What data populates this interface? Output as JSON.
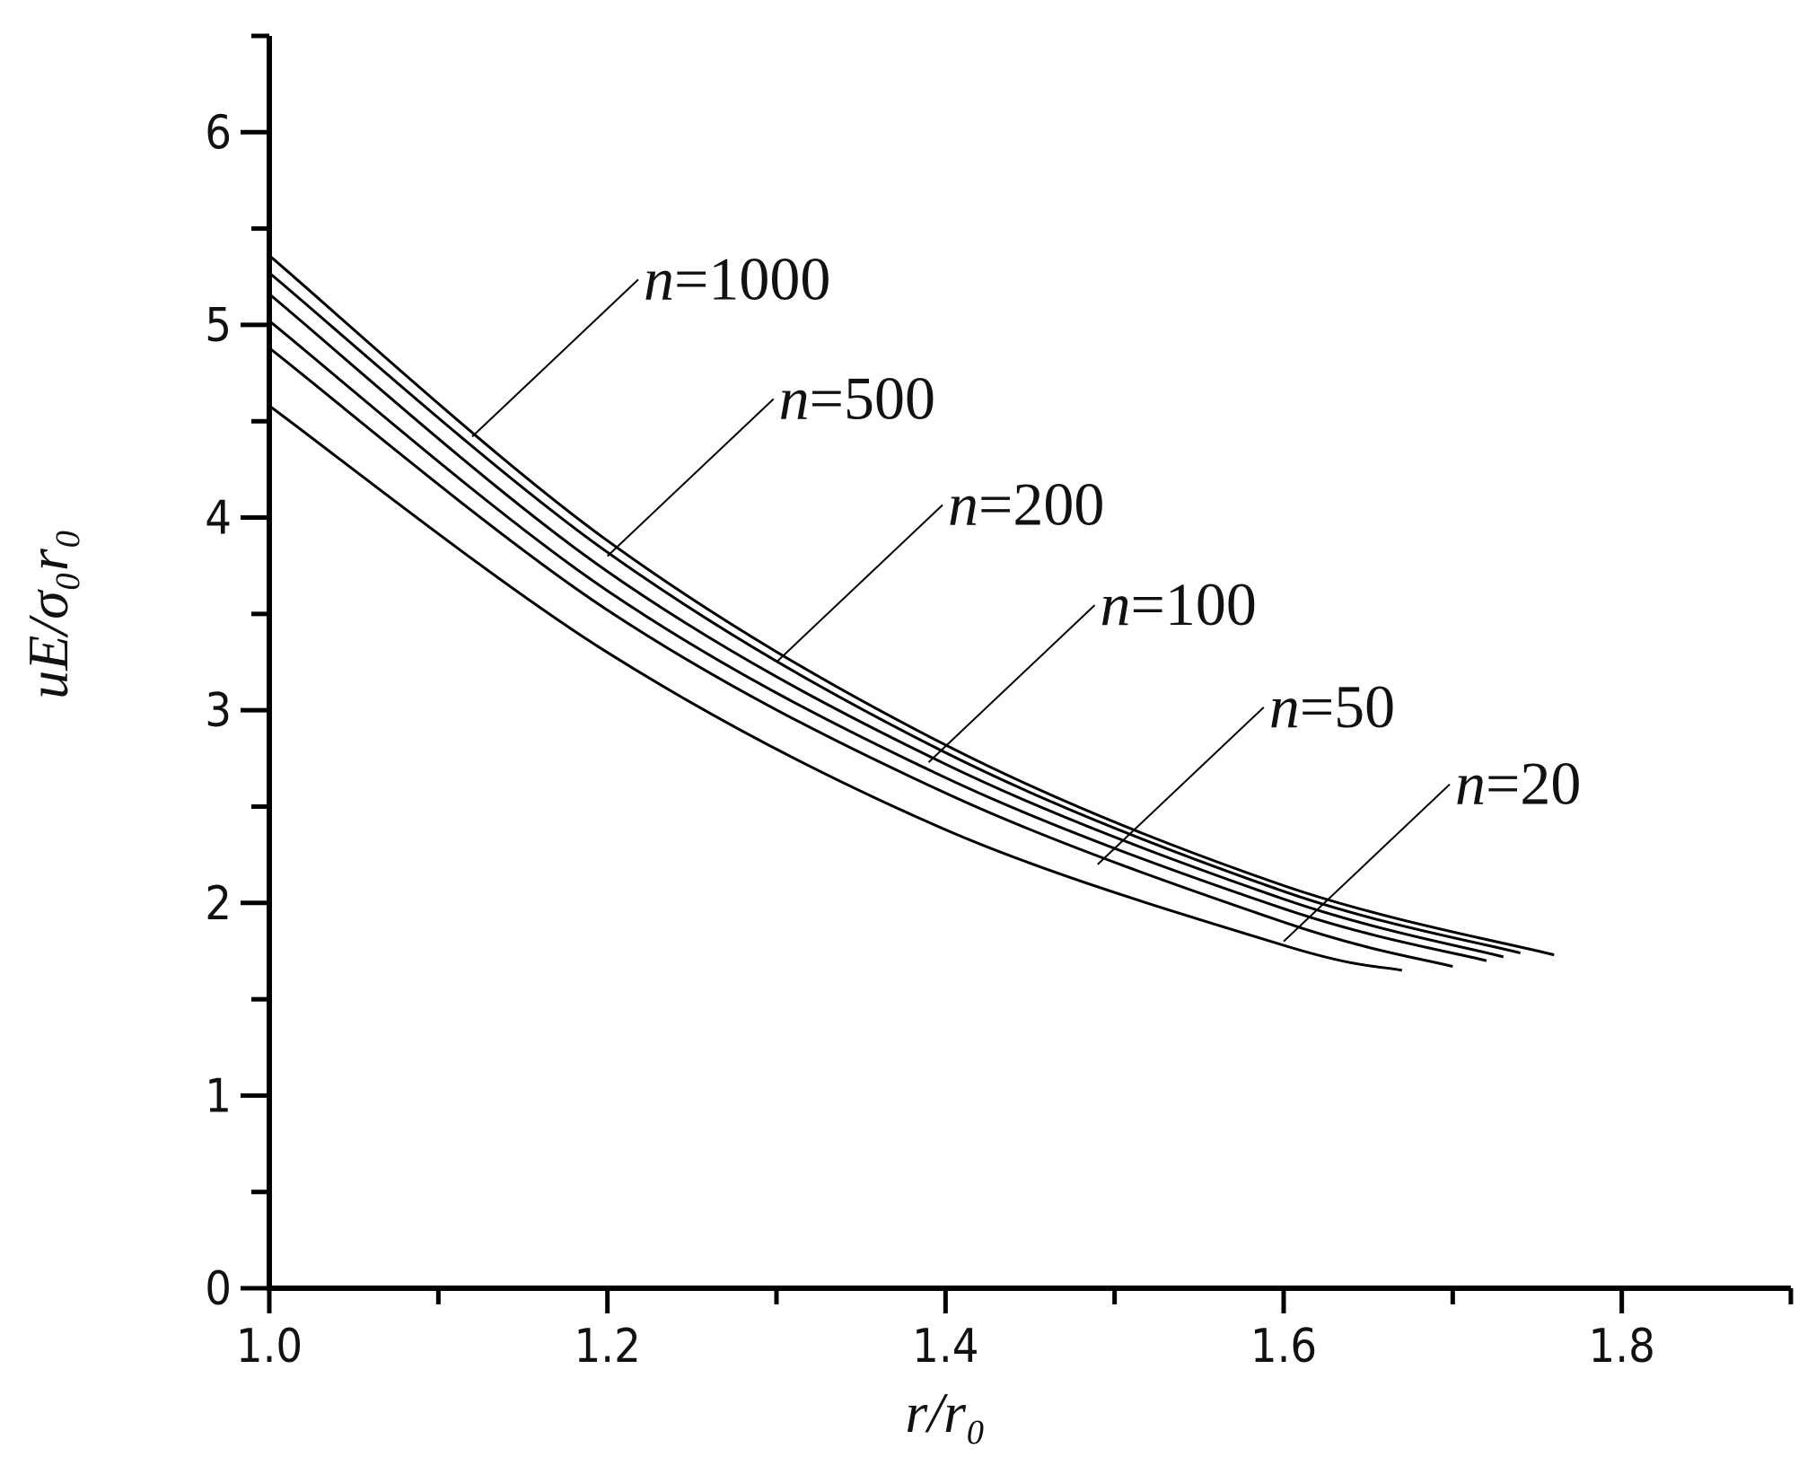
{
  "chart_data": {
    "type": "line",
    "xlabel": "r/r₀",
    "ylabel": "uE/σ₀r₀",
    "xlim": [
      1.0,
      1.9
    ],
    "ylim": [
      0,
      6.5
    ],
    "xticks": [
      "1.0",
      "1.2",
      "1.4",
      "1.6",
      "1.8"
    ],
    "yticks": [
      "0",
      "1",
      "2",
      "3",
      "4",
      "5",
      "6"
    ],
    "grid": false,
    "legend": "none",
    "series": [
      {
        "name": "n=1000",
        "label_var": "n",
        "label_value": "=1000",
        "x": [
          1.0,
          1.2,
          1.4,
          1.6,
          1.76
        ],
        "y": [
          5.36,
          3.88,
          2.82,
          2.09,
          1.73
        ],
        "label_anchor": [
          1.12,
          4.42
        ]
      },
      {
        "name": "n=500",
        "label_var": "n",
        "label_value": "=500",
        "x": [
          1.0,
          1.2,
          1.4,
          1.6,
          1.74
        ],
        "y": [
          5.27,
          3.82,
          2.78,
          2.06,
          1.74
        ],
        "label_anchor": [
          1.2,
          3.8
        ]
      },
      {
        "name": "n=200",
        "label_var": "n",
        "label_value": "=200",
        "x": [
          1.0,
          1.2,
          1.4,
          1.6,
          1.73
        ],
        "y": [
          5.16,
          3.72,
          2.72,
          2.02,
          1.72
        ],
        "label_anchor": [
          1.3,
          3.25
        ]
      },
      {
        "name": "n=100",
        "label_var": "n",
        "label_value": "=100",
        "x": [
          1.0,
          1.2,
          1.4,
          1.6,
          1.72
        ],
        "y": [
          5.02,
          3.62,
          2.65,
          1.97,
          1.7
        ],
        "label_anchor": [
          1.39,
          2.73
        ]
      },
      {
        "name": "n=50",
        "label_var": "n",
        "label_value": "=50",
        "x": [
          1.0,
          1.2,
          1.4,
          1.6,
          1.7
        ],
        "y": [
          4.88,
          3.52,
          2.57,
          1.9,
          1.67
        ],
        "label_anchor": [
          1.49,
          2.2
        ]
      },
      {
        "name": "n=20",
        "label_var": "n",
        "label_value": "=20",
        "x": [
          1.0,
          1.2,
          1.4,
          1.6,
          1.67
        ],
        "y": [
          4.58,
          3.3,
          2.38,
          1.78,
          1.65
        ],
        "label_anchor": [
          1.6,
          1.8
        ]
      }
    ],
    "colors": {
      "line": "#000000",
      "axis": "#000000",
      "background": "#ffffff"
    }
  }
}
